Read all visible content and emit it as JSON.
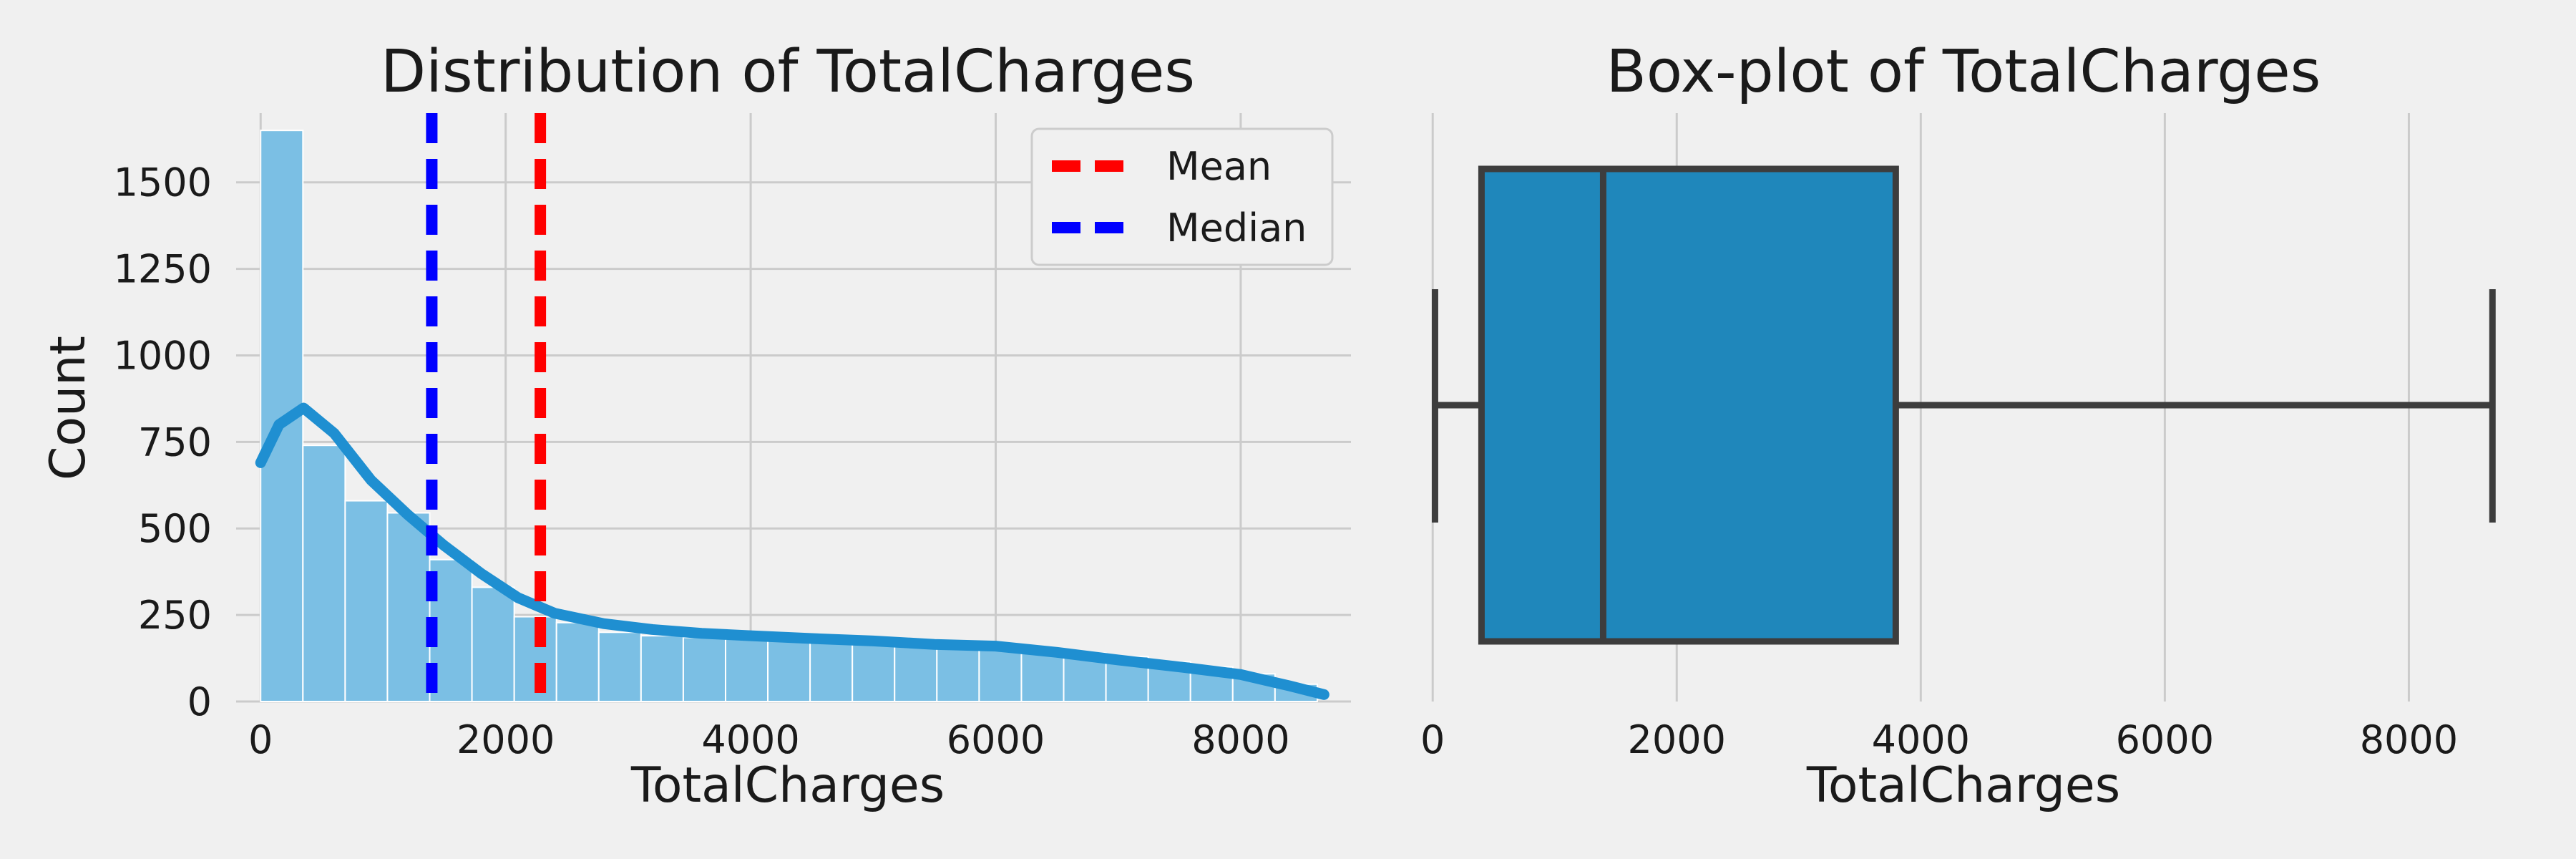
{
  "colors": {
    "background": "#f0f0f0",
    "grid": "#cbcbcb",
    "hist_bar": "#7bbfe4",
    "kde_line": "#1f8fd1",
    "mean_line": "#ff0000",
    "median_line": "#0000ff",
    "box_fill": "#1f87bb",
    "box_edge": "#3d3d3d"
  },
  "chart_data": [
    {
      "type": "histogram",
      "title": "Distribution of TotalCharges",
      "xlabel": "TotalCharges",
      "ylabel": "Count",
      "xlim": [
        -200,
        8900
      ],
      "ylim": [
        0,
        1700
      ],
      "xticks": [
        0,
        2000,
        4000,
        6000,
        8000
      ],
      "yticks": [
        0,
        250,
        500,
        750,
        1000,
        1250,
        1500
      ],
      "grid": true,
      "bin_width": 345,
      "bin_start": 0,
      "counts": [
        1650,
        740,
        580,
        545,
        410,
        330,
        245,
        228,
        200,
        190,
        185,
        180,
        178,
        170,
        168,
        160,
        155,
        150,
        145,
        140,
        130,
        115,
        100,
        80,
        50
      ],
      "kde": {
        "name": "",
        "x": [
          0,
          150,
          350,
          600,
          900,
          1200,
          1500,
          1800,
          2100,
          2400,
          2800,
          3200,
          3600,
          4000,
          4500,
          5000,
          5500,
          6000,
          6500,
          7000,
          7500,
          8000,
          8400,
          8680
        ],
        "y": [
          690,
          800,
          848,
          775,
          640,
          540,
          450,
          370,
          300,
          255,
          225,
          208,
          197,
          190,
          182,
          175,
          165,
          160,
          142,
          120,
          100,
          78,
          45,
          20
        ]
      },
      "reference_lines": [
        {
          "name": "Mean",
          "x": 2283,
          "color": "#ff0000",
          "style": "dashed"
        },
        {
          "name": "Median",
          "x": 1397,
          "color": "#0000ff",
          "style": "dashed"
        }
      ],
      "legend": {
        "placement": "top-right",
        "entries": [
          "Mean",
          "Median"
        ]
      }
    },
    {
      "type": "boxplot",
      "title": "Box-plot of TotalCharges",
      "xlabel": "TotalCharges",
      "xlim": [
        -400,
        9100
      ],
      "xticks": [
        0,
        2000,
        4000,
        6000,
        8000
      ],
      "grid": true,
      "whisker_low": 19,
      "q1": 400,
      "median": 1397,
      "q3": 3795,
      "whisker_high": 8685
    }
  ]
}
